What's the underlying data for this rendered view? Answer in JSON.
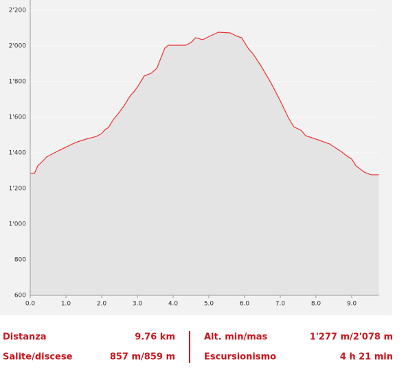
{
  "chart_data": {
    "type": "area-line",
    "color": "#e8332f",
    "fill": "#e4e4e4",
    "grid": true,
    "xlim": [
      0,
      9.76
    ],
    "ylim": [
      600,
      2200
    ],
    "xticks": [
      {
        "value": 0,
        "label": "0.0"
      },
      {
        "value": 1,
        "label": "1.0"
      },
      {
        "value": 2,
        "label": "2.0"
      },
      {
        "value": 3,
        "label": "3.0"
      },
      {
        "value": 4,
        "label": "4.0"
      },
      {
        "value": 5,
        "label": "5.0"
      },
      {
        "value": 6,
        "label": "6.0"
      },
      {
        "value": 7,
        "label": "7.0"
      },
      {
        "value": 8,
        "label": "8.0"
      },
      {
        "value": 9,
        "label": "9.0"
      }
    ],
    "yticks": [
      600,
      800,
      {
        "value": 1000,
        "label": "1'000"
      },
      {
        "value": 1200,
        "label": "1'200"
      },
      {
        "value": 1400,
        "label": "1'400"
      },
      {
        "value": 1600,
        "label": "1'600"
      },
      {
        "value": 1800,
        "label": "1'800"
      },
      {
        "value": 2000,
        "label": "2'000"
      },
      {
        "value": 2200,
        "label": "2'200"
      }
    ],
    "x": [
      0,
      0.12,
      0.21,
      0.35,
      0.46,
      0.79,
      1.27,
      1.56,
      1.85,
      2.0,
      2.1,
      2.19,
      2.33,
      2.46,
      2.62,
      2.81,
      2.9,
      3.0,
      3.19,
      3.38,
      3.54,
      3.77,
      3.87,
      4.35,
      4.5,
      4.63,
      4.83,
      5.02,
      5.27,
      5.6,
      5.79,
      5.92,
      6.12,
      6.23,
      6.46,
      6.75,
      7.0,
      7.23,
      7.38,
      7.58,
      7.71,
      8.0,
      8.38,
      8.73,
      8.87,
      9.0,
      9.12,
      9.35,
      9.54,
      9.76
    ],
    "values": [
      1285,
      1285,
      1327,
      1354,
      1377,
      1412,
      1458,
      1477,
      1492,
      1508,
      1531,
      1542,
      1588,
      1619,
      1662,
      1723,
      1742,
      1769,
      1831,
      1846,
      1873,
      1988,
      2004,
      2004,
      2019,
      2046,
      2035,
      2054,
      2077,
      2073,
      2054,
      2046,
      1981,
      1958,
      1888,
      1788,
      1692,
      1596,
      1546,
      1527,
      1496,
      1477,
      1450,
      1404,
      1381,
      1365,
      1327,
      1292,
      1277,
      1277
    ]
  },
  "stats": [
    {
      "label": "Distanza",
      "value": "9.76 km"
    },
    {
      "label": "Alt. min/mas",
      "value": "1'277 m/2'078 m"
    },
    {
      "label": "Salite/discese",
      "value": "857 m/859 m"
    },
    {
      "label": "Escursionismo",
      "value": "4 h 21 min"
    }
  ]
}
